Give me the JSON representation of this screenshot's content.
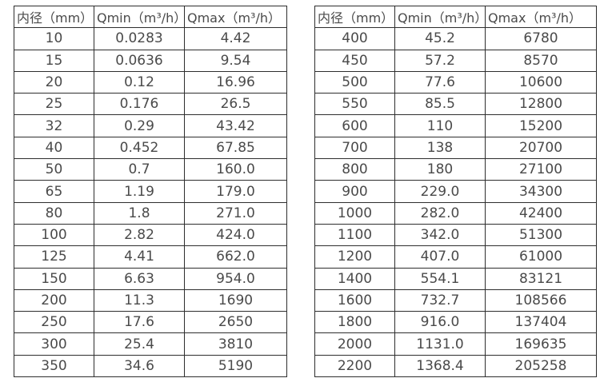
{
  "tables": {
    "left": {
      "headers": [
        "内径（mm）",
        "Qmin（m³/h）",
        "Qmax（m³/h）"
      ],
      "rows": [
        [
          "10",
          "0.0283",
          "4.42"
        ],
        [
          "15",
          "0.0636",
          "9.54"
        ],
        [
          "20",
          "0.12",
          "16.96"
        ],
        [
          "25",
          "0.176",
          "26.5"
        ],
        [
          "32",
          "0.29",
          "43.42"
        ],
        [
          "40",
          "0.452",
          "67.85"
        ],
        [
          "50",
          "0.7",
          "160.0"
        ],
        [
          "65",
          "1.19",
          "179.0"
        ],
        [
          "80",
          "1.8",
          "271.0"
        ],
        [
          "100",
          "2.82",
          "424.0"
        ],
        [
          "125",
          "4.41",
          "662.0"
        ],
        [
          "150",
          "6.63",
          "954.0"
        ],
        [
          "200",
          "11.3",
          "1690"
        ],
        [
          "250",
          "17.6",
          "2650"
        ],
        [
          "300",
          "25.4",
          "3810"
        ],
        [
          "350",
          "34.6",
          "5190"
        ]
      ]
    },
    "right": {
      "headers": [
        "内径（mm）",
        "Qmin（m³/h）",
        "Qmax（m³/h）"
      ],
      "rows": [
        [
          "400",
          "45.2",
          "6780"
        ],
        [
          "450",
          "57.2",
          "8570"
        ],
        [
          "500",
          "77.6",
          "10600"
        ],
        [
          "550",
          "85.5",
          "12800"
        ],
        [
          "600",
          "110",
          "15200"
        ],
        [
          "700",
          "138",
          "20700"
        ],
        [
          "800",
          "180",
          "27100"
        ],
        [
          "900",
          "229.0",
          "34300"
        ],
        [
          "1000",
          "282.0",
          "42400"
        ],
        [
          "1100",
          "342.0",
          "51300"
        ],
        [
          "1200",
          "407.0",
          "61000"
        ],
        [
          "1400",
          "554.1",
          "83121"
        ],
        [
          "1600",
          "732.7",
          "108566"
        ],
        [
          "1800",
          "916.0",
          "137404"
        ],
        [
          "2000",
          "1131.0",
          "169635"
        ],
        [
          "2200",
          "1368.4",
          "205258"
        ]
      ]
    }
  },
  "colors": {
    "border": "#2e2e2e",
    "text": "#4a4a4a",
    "background": "#ffffff"
  }
}
